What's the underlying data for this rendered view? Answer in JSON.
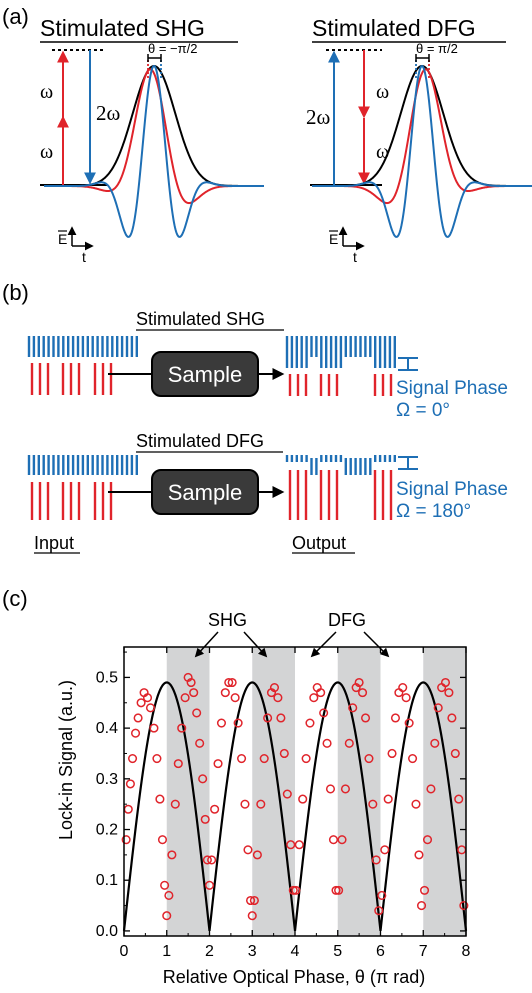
{
  "panel_a": {
    "label": "(a)",
    "left": {
      "title": "Stimulated SHG",
      "omega_top": "ω",
      "omega_bottom": "ω",
      "two_omega": "2ω",
      "theta": "θ = −π/2"
    },
    "right": {
      "title": "Stimulated DFG",
      "two_omega": "2ω",
      "omega_top": "ω",
      "omega_bottom": "ω",
      "theta": "θ = π/2"
    },
    "axis_e": "E",
    "axis_t": "t"
  },
  "panel_b": {
    "label": "(b)",
    "shg_title": "Stimulated SHG",
    "dfg_title": "Stimulated DFG",
    "sample_label": "Sample",
    "signal_phase_label": "Signal Phase",
    "shg_omega": "Ω = 0°",
    "dfg_omega": "Ω = 180°",
    "input_label": "Input",
    "output_label": "Output"
  },
  "panel_c": {
    "label": "(c)",
    "annotation_shg": "SHG",
    "annotation_dfg": "DFG"
  },
  "colors": {
    "red": "#e0242b",
    "blue": "#1e6fb5",
    "black": "#000000",
    "gray_band": "#d3d4d5",
    "sample_box": "#3a3a3a"
  },
  "chart_data": {
    "type": "scatter",
    "xlabel": "Relative Optical Phase, θ (π rad)",
    "ylabel": "Lock-in Signal (a.u.)",
    "xlim": [
      0,
      8
    ],
    "ylim": [
      -0.01,
      0.56
    ],
    "x_ticks": [
      0,
      1,
      2,
      3,
      4,
      5,
      6,
      7,
      8
    ],
    "y_ticks": [
      0.0,
      0.1,
      0.2,
      0.3,
      0.4,
      0.5
    ],
    "x_tick_labels": [
      "0",
      "1",
      "2",
      "3",
      "4",
      "5",
      "6",
      "7",
      "8"
    ],
    "y_tick_labels": [
      "0.0",
      "0.1",
      "0.2",
      "0.3",
      "0.4",
      "0.5"
    ],
    "shaded_bands": [
      [
        1,
        2
      ],
      [
        3,
        4
      ],
      [
        5,
        6
      ],
      [
        7,
        8
      ]
    ],
    "fit_curve": {
      "function": "0.49*|sin(pi*theta/2)|",
      "amplitude": 0.49
    },
    "points": [
      {
        "x": 0.05,
        "y": 0.18
      },
      {
        "x": 0.1,
        "y": 0.24
      },
      {
        "x": 0.15,
        "y": 0.29
      },
      {
        "x": 0.2,
        "y": 0.34
      },
      {
        "x": 0.27,
        "y": 0.39
      },
      {
        "x": 0.33,
        "y": 0.42
      },
      {
        "x": 0.4,
        "y": 0.45
      },
      {
        "x": 0.47,
        "y": 0.47
      },
      {
        "x": 0.55,
        "y": 0.46
      },
      {
        "x": 0.62,
        "y": 0.44
      },
      {
        "x": 0.7,
        "y": 0.4
      },
      {
        "x": 0.77,
        "y": 0.34
      },
      {
        "x": 0.84,
        "y": 0.26
      },
      {
        "x": 0.9,
        "y": 0.18
      },
      {
        "x": 0.95,
        "y": 0.09
      },
      {
        "x": 1.0,
        "y": 0.03
      },
      {
        "x": 1.05,
        "y": 0.07
      },
      {
        "x": 1.12,
        "y": 0.15
      },
      {
        "x": 1.2,
        "y": 0.25
      },
      {
        "x": 1.27,
        "y": 0.33
      },
      {
        "x": 1.35,
        "y": 0.4
      },
      {
        "x": 1.43,
        "y": 0.46
      },
      {
        "x": 1.5,
        "y": 0.5
      },
      {
        "x": 1.57,
        "y": 0.49
      },
      {
        "x": 1.63,
        "y": 0.47
      },
      {
        "x": 1.7,
        "y": 0.43
      },
      {
        "x": 1.77,
        "y": 0.37
      },
      {
        "x": 1.84,
        "y": 0.3
      },
      {
        "x": 1.9,
        "y": 0.22
      },
      {
        "x": 1.95,
        "y": 0.14
      },
      {
        "x": 2.0,
        "y": 0.09
      },
      {
        "x": 2.05,
        "y": 0.14
      },
      {
        "x": 2.12,
        "y": 0.24
      },
      {
        "x": 2.2,
        "y": 0.33
      },
      {
        "x": 2.28,
        "y": 0.41
      },
      {
        "x": 2.37,
        "y": 0.47
      },
      {
        "x": 2.45,
        "y": 0.49
      },
      {
        "x": 2.53,
        "y": 0.49
      },
      {
        "x": 2.6,
        "y": 0.46
      },
      {
        "x": 2.67,
        "y": 0.41
      },
      {
        "x": 2.75,
        "y": 0.34
      },
      {
        "x": 2.83,
        "y": 0.25
      },
      {
        "x": 2.9,
        "y": 0.16
      },
      {
        "x": 2.96,
        "y": 0.06
      },
      {
        "x": 3.0,
        "y": 0.03
      },
      {
        "x": 3.05,
        "y": 0.06
      },
      {
        "x": 3.12,
        "y": 0.15
      },
      {
        "x": 3.2,
        "y": 0.25
      },
      {
        "x": 3.28,
        "y": 0.34
      },
      {
        "x": 3.36,
        "y": 0.42
      },
      {
        "x": 3.45,
        "y": 0.47
      },
      {
        "x": 3.52,
        "y": 0.48
      },
      {
        "x": 3.6,
        "y": 0.46
      },
      {
        "x": 3.67,
        "y": 0.42
      },
      {
        "x": 3.75,
        "y": 0.35
      },
      {
        "x": 3.82,
        "y": 0.27
      },
      {
        "x": 3.9,
        "y": 0.17
      },
      {
        "x": 3.96,
        "y": 0.08
      },
      {
        "x": 4.02,
        "y": 0.08
      },
      {
        "x": 4.1,
        "y": 0.17
      },
      {
        "x": 4.18,
        "y": 0.26
      },
      {
        "x": 4.26,
        "y": 0.34
      },
      {
        "x": 4.35,
        "y": 0.41
      },
      {
        "x": 4.44,
        "y": 0.46
      },
      {
        "x": 4.52,
        "y": 0.48
      },
      {
        "x": 4.6,
        "y": 0.47
      },
      {
        "x": 4.67,
        "y": 0.43
      },
      {
        "x": 4.75,
        "y": 0.37
      },
      {
        "x": 4.83,
        "y": 0.28
      },
      {
        "x": 4.9,
        "y": 0.18
      },
      {
        "x": 4.96,
        "y": 0.08
      },
      {
        "x": 5.02,
        "y": 0.08
      },
      {
        "x": 5.1,
        "y": 0.18
      },
      {
        "x": 5.18,
        "y": 0.28
      },
      {
        "x": 5.27,
        "y": 0.37
      },
      {
        "x": 5.35,
        "y": 0.44
      },
      {
        "x": 5.43,
        "y": 0.48
      },
      {
        "x": 5.5,
        "y": 0.49
      },
      {
        "x": 5.58,
        "y": 0.47
      },
      {
        "x": 5.65,
        "y": 0.42
      },
      {
        "x": 5.73,
        "y": 0.34
      },
      {
        "x": 5.82,
        "y": 0.25
      },
      {
        "x": 5.9,
        "y": 0.14
      },
      {
        "x": 5.96,
        "y": 0.04
      },
      {
        "x": 6.03,
        "y": 0.07
      },
      {
        "x": 6.1,
        "y": 0.16
      },
      {
        "x": 6.18,
        "y": 0.26
      },
      {
        "x": 6.27,
        "y": 0.35
      },
      {
        "x": 6.35,
        "y": 0.42
      },
      {
        "x": 6.43,
        "y": 0.47
      },
      {
        "x": 6.52,
        "y": 0.48
      },
      {
        "x": 6.6,
        "y": 0.46
      },
      {
        "x": 6.67,
        "y": 0.41
      },
      {
        "x": 6.75,
        "y": 0.34
      },
      {
        "x": 6.83,
        "y": 0.25
      },
      {
        "x": 6.9,
        "y": 0.15
      },
      {
        "x": 6.96,
        "y": 0.05
      },
      {
        "x": 7.03,
        "y": 0.08
      },
      {
        "x": 7.1,
        "y": 0.18
      },
      {
        "x": 7.18,
        "y": 0.28
      },
      {
        "x": 7.27,
        "y": 0.37
      },
      {
        "x": 7.35,
        "y": 0.44
      },
      {
        "x": 7.43,
        "y": 0.48
      },
      {
        "x": 7.52,
        "y": 0.49
      },
      {
        "x": 7.6,
        "y": 0.47
      },
      {
        "x": 7.67,
        "y": 0.42
      },
      {
        "x": 7.75,
        "y": 0.35
      },
      {
        "x": 7.83,
        "y": 0.26
      },
      {
        "x": 7.9,
        "y": 0.16
      },
      {
        "x": 7.95,
        "y": 0.05
      }
    ]
  }
}
